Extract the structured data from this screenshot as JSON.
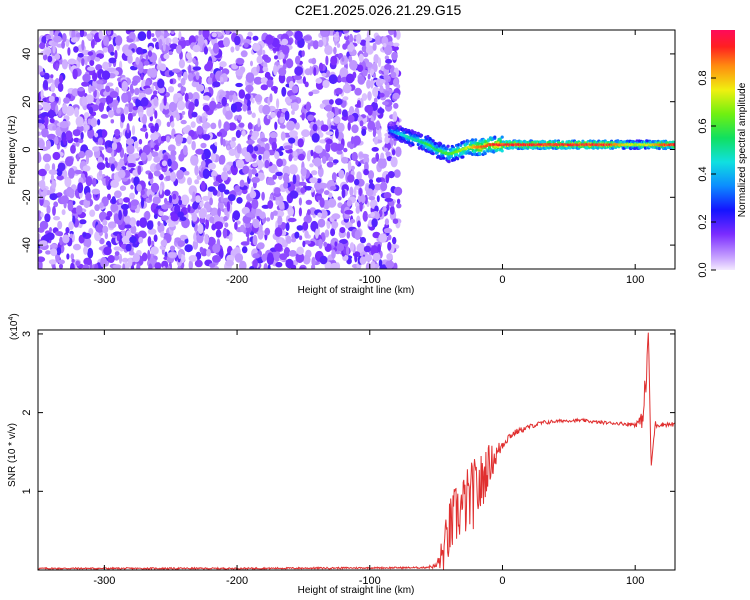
{
  "title": "C2E1.2025.026.21.29.G15",
  "chart_data": [
    {
      "type": "heatmap",
      "xlabel": "Height of straight line (km)",
      "ylabel": "Frequency (Hz)",
      "xlim": [
        -350,
        130
      ],
      "ylim": [
        -50,
        50
      ],
      "x_ticks": [
        -300,
        -200,
        -100,
        0,
        100
      ],
      "y_ticks": [
        -40,
        -20,
        0,
        20,
        40
      ],
      "noise_region_x": [
        -350,
        -78
      ],
      "signal_line": {
        "x": [
          -85,
          -80,
          -75,
          -70,
          -65,
          -60,
          -55,
          -50,
          -45,
          -40,
          -35,
          -30,
          -25,
          -20,
          -15,
          -10,
          -5,
          0,
          10,
          20,
          40,
          60,
          80,
          90,
          100,
          110,
          120,
          130
        ],
        "y": [
          8,
          7,
          6,
          5,
          4,
          3,
          2,
          0,
          -1,
          -2,
          -1,
          0,
          1,
          1,
          1,
          2,
          2,
          2,
          2,
          2,
          2,
          2,
          2,
          2,
          2,
          2,
          2,
          2
        ],
        "amplitude": [
          0.3,
          0.4,
          0.45,
          0.5,
          0.5,
          0.55,
          0.6,
          0.55,
          0.6,
          0.6,
          0.65,
          0.7,
          0.75,
          0.85,
          0.9,
          0.9,
          0.95,
          0.95,
          0.95,
          0.95,
          0.95,
          0.95,
          0.95,
          0.8,
          0.7,
          0.75,
          0.9,
          0.95
        ]
      },
      "colorbar": {
        "label": "Normalized spectral amplitude",
        "range": [
          0,
          1
        ],
        "ticks": [
          0.0,
          0.2,
          0.4,
          0.6,
          0.8
        ]
      }
    },
    {
      "type": "line",
      "xlabel": "Height of straight line (km)",
      "ylabel": "SNR (10 * v/v)",
      "scale_label": "(x10",
      "scale_exponent": "4",
      "scale_close": ")",
      "xlim": [
        -350,
        130
      ],
      "ylim": [
        0,
        3.05
      ],
      "x_ticks": [
        -300,
        -200,
        -100,
        0,
        100
      ],
      "y_ticks": [
        1,
        2,
        3
      ],
      "line_color": "#e03030",
      "series": [
        {
          "x": [
            -350,
            -200,
            -60,
            -50,
            -45,
            -40,
            -35,
            -30,
            -25,
            -20,
            -15,
            -12,
            -5,
            0,
            5,
            10,
            20,
            30,
            40,
            50,
            60,
            70,
            80,
            90,
            100,
            105,
            108,
            110,
            112,
            115,
            120,
            130
          ],
          "y": [
            0.02,
            0.02,
            0.03,
            0.05,
            0.2,
            0.5,
            0.7,
            0.8,
            0.9,
            1.0,
            1.1,
            1.3,
            1.45,
            1.6,
            1.7,
            1.75,
            1.82,
            1.87,
            1.89,
            1.9,
            1.9,
            1.88,
            1.87,
            1.86,
            1.85,
            1.9,
            2.3,
            3.05,
            1.3,
            1.85,
            1.85,
            1.85
          ],
          "noise_amplitude": [
            0.01,
            0.01,
            0.01,
            0.03,
            0.25,
            0.4,
            0.4,
            0.4,
            0.45,
            0.45,
            0.4,
            0.3,
            0.15,
            0.08,
            0.05,
            0.04,
            0.03,
            0.03,
            0.02,
            0.02,
            0.02,
            0.02,
            0.02,
            0.02,
            0.03,
            0.1,
            0.3,
            0.0,
            0.0,
            0.05,
            0.03,
            0.03
          ]
        }
      ]
    }
  ]
}
